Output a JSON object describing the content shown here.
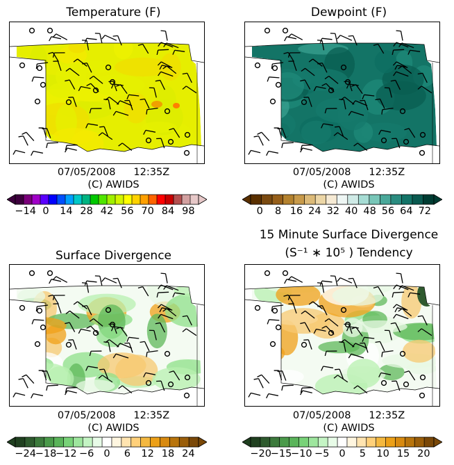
{
  "panels": [
    {
      "key": "temperature",
      "title_lines": [
        "Temperature (F)"
      ],
      "palette": "temp",
      "cbar_colors": [
        "#3d003d",
        "#7a007a",
        "#a000c8",
        "#5a00ff",
        "#0000ff",
        "#0050ff",
        "#00a0ff",
        "#00c8c8",
        "#00b482",
        "#00c800",
        "#50e600",
        "#a0f000",
        "#d2f500",
        "#ffff00",
        "#ffd200",
        "#ffa000",
        "#ff6400",
        "#ff0000",
        "#c80000",
        "#b45050",
        "#d2a0a0",
        "#e6c8c8"
      ],
      "tick_labels": [
        "−14",
        "0",
        "14",
        "28",
        "42",
        "56",
        "70",
        "84",
        "98"
      ],
      "timestamp": {
        "date": "07/05/2008",
        "time": "12:35Z"
      },
      "credit": "(C) AWIDS"
    },
    {
      "key": "dewpoint",
      "title_lines": [
        "Dewpoint (F)"
      ],
      "palette": "dew",
      "cbar_colors": [
        "#5a3000",
        "#7a4a10",
        "#965f1a",
        "#b4822e",
        "#c89a4a",
        "#dcba78",
        "#ecd6a6",
        "#f6ead4",
        "#eef6f4",
        "#cfeae6",
        "#a6dcd4",
        "#78c6b8",
        "#4aa89a",
        "#2a8c80",
        "#147468",
        "#0a5a50",
        "#003c32"
      ],
      "tick_labels": [
        "0",
        "8",
        "16",
        "24",
        "32",
        "40",
        "48",
        "56",
        "64",
        "72"
      ],
      "timestamp": {
        "date": "07/05/2008",
        "time": "12:35Z"
      },
      "credit": "(C) AWIDS"
    },
    {
      "key": "divergence",
      "title_lines": [
        "Surface Divergence"
      ],
      "palette": "div",
      "cbar_colors": [
        "#204020",
        "#2e5a2e",
        "#3c7a3c",
        "#4a9a4a",
        "#5ab45a",
        "#78d278",
        "#9ee69e",
        "#c4f4c4",
        "#e8fce8",
        "#ffffff",
        "#fff6e0",
        "#ffe4b0",
        "#ffd07a",
        "#f4b840",
        "#eca018",
        "#d88a10",
        "#b8740c",
        "#9a5e0a",
        "#7a4808"
      ],
      "tick_labels": [
        "−24",
        "−18",
        "−12",
        "−6",
        "0",
        "6",
        "12",
        "18",
        "24"
      ],
      "timestamp": {
        "date": "07/05/2008",
        "time": "12:35Z"
      },
      "credit": "(C) AWIDS"
    },
    {
      "key": "tendency",
      "title_lines": [
        "15 Minute Surface Divergence",
        "(S⁻¹ ∗ 10⁵ ) Tendency"
      ],
      "palette": "div",
      "cbar_colors": [
        "#204020",
        "#2e5a2e",
        "#3c7a3c",
        "#4a9a4a",
        "#5ab45a",
        "#78d278",
        "#9ee69e",
        "#c4f4c4",
        "#e8fce8",
        "#ffffff",
        "#fff6e0",
        "#ffe4b0",
        "#ffd07a",
        "#f4b840",
        "#eca018",
        "#d88a10",
        "#b8740c",
        "#9a5e0a",
        "#7a4808"
      ],
      "tick_labels": [
        "−20",
        "−15",
        "−10",
        "−5",
        "0",
        "5",
        "10",
        "15",
        "20"
      ],
      "timestamp": {
        "date": "07/05/2008",
        "time": "12:35Z"
      },
      "credit": "(C) AWIDS"
    }
  ]
}
